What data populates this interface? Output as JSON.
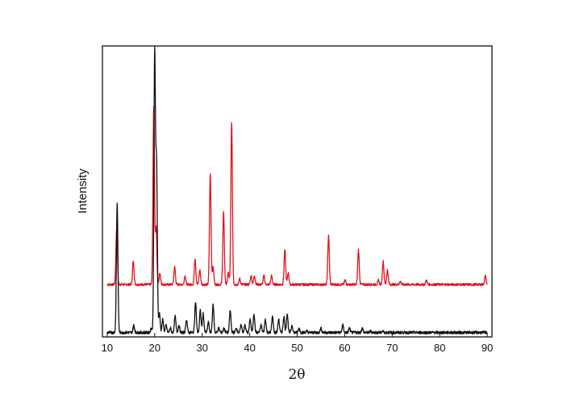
{
  "chart_data": {
    "type": "line",
    "xlabel": "2θ",
    "ylabel": "Intensity",
    "xlim": [
      9,
      91
    ],
    "ylim": [
      0,
      100
    ],
    "grid": false,
    "legend": "none",
    "x_ticks": [
      10,
      20,
      30,
      40,
      50,
      60,
      70,
      80,
      90
    ],
    "x_tick_labels": [
      "10",
      "20",
      "30",
      "40",
      "50",
      "60",
      "70",
      "80",
      "90"
    ],
    "y_ticks_labeled": false,
    "series": [
      {
        "color": "#111111",
        "baseline": 1.5,
        "noise": 0.5,
        "peaks": [
          {
            "x": 12.1,
            "y": 46
          },
          {
            "x": 15.6,
            "y": 4
          },
          {
            "x": 19.3,
            "y": 3
          },
          {
            "x": 20.0,
            "y": 97
          },
          {
            "x": 20.4,
            "y": 58
          },
          {
            "x": 21.0,
            "y": 8
          },
          {
            "x": 21.7,
            "y": 6
          },
          {
            "x": 22.4,
            "y": 4
          },
          {
            "x": 23.3,
            "y": 3
          },
          {
            "x": 24.3,
            "y": 7
          },
          {
            "x": 25.1,
            "y": 4
          },
          {
            "x": 26.7,
            "y": 6
          },
          {
            "x": 28.6,
            "y": 12
          },
          {
            "x": 29.6,
            "y": 9
          },
          {
            "x": 30.2,
            "y": 8
          },
          {
            "x": 31.3,
            "y": 5
          },
          {
            "x": 32.3,
            "y": 11
          },
          {
            "x": 33.5,
            "y": 3
          },
          {
            "x": 34.6,
            "y": 3
          },
          {
            "x": 35.9,
            "y": 9
          },
          {
            "x": 37.2,
            "y": 3
          },
          {
            "x": 38.2,
            "y": 4
          },
          {
            "x": 39.0,
            "y": 4
          },
          {
            "x": 40.1,
            "y": 6
          },
          {
            "x": 40.9,
            "y": 8
          },
          {
            "x": 42.4,
            "y": 4
          },
          {
            "x": 43.3,
            "y": 6
          },
          {
            "x": 44.8,
            "y": 7
          },
          {
            "x": 46.1,
            "y": 6
          },
          {
            "x": 47.2,
            "y": 7
          },
          {
            "x": 47.9,
            "y": 8
          },
          {
            "x": 48.9,
            "y": 4
          },
          {
            "x": 50.4,
            "y": 3
          },
          {
            "x": 52.0,
            "y": 2
          },
          {
            "x": 55.0,
            "y": 3
          },
          {
            "x": 59.6,
            "y": 4
          },
          {
            "x": 61.0,
            "y": 3
          },
          {
            "x": 63.7,
            "y": 3
          },
          {
            "x": 65.5,
            "y": 2
          },
          {
            "x": 68.0,
            "y": 2
          },
          {
            "x": 71.0,
            "y": 1.5
          },
          {
            "x": 78.0,
            "y": 1.5
          }
        ]
      },
      {
        "color": "#e0141e",
        "baseline": 18,
        "noise": 0.4,
        "peaks": [
          {
            "x": 12.0,
            "y": 37
          },
          {
            "x": 15.5,
            "y": 26
          },
          {
            "x": 19.8,
            "y": 79
          },
          {
            "x": 20.3,
            "y": 38
          },
          {
            "x": 21.1,
            "y": 22
          },
          {
            "x": 24.2,
            "y": 24
          },
          {
            "x": 26.4,
            "y": 21
          },
          {
            "x": 28.5,
            "y": 27
          },
          {
            "x": 29.5,
            "y": 23
          },
          {
            "x": 31.7,
            "y": 56
          },
          {
            "x": 32.3,
            "y": 24
          },
          {
            "x": 34.5,
            "y": 43
          },
          {
            "x": 35.5,
            "y": 22
          },
          {
            "x": 36.2,
            "y": 74
          },
          {
            "x": 37.9,
            "y": 20
          },
          {
            "x": 40.3,
            "y": 21
          },
          {
            "x": 41.0,
            "y": 21
          },
          {
            "x": 43.0,
            "y": 21
          },
          {
            "x": 44.6,
            "y": 21
          },
          {
            "x": 47.4,
            "y": 30
          },
          {
            "x": 48.1,
            "y": 22
          },
          {
            "x": 56.6,
            "y": 35
          },
          {
            "x": 60.1,
            "y": 19.5
          },
          {
            "x": 62.9,
            "y": 30
          },
          {
            "x": 67.1,
            "y": 19.5
          },
          {
            "x": 68.1,
            "y": 26
          },
          {
            "x": 69.0,
            "y": 23
          },
          {
            "x": 71.7,
            "y": 19
          },
          {
            "x": 77.2,
            "y": 19.5
          },
          {
            "x": 89.6,
            "y": 21
          }
        ]
      }
    ]
  }
}
